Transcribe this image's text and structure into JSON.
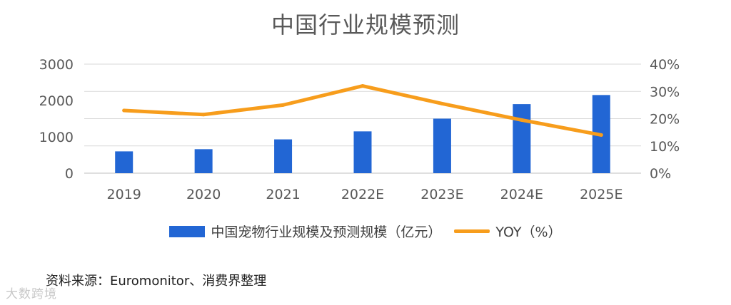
{
  "chart_data": {
    "type": "bar",
    "title": "中国行业规模预测",
    "categories": [
      "2019",
      "2020",
      "2021",
      "2022E",
      "2023E",
      "2024E",
      "2025E"
    ],
    "series": [
      {
        "name": "中国宠物行业规模及预测规模（亿元）",
        "type": "bar",
        "axis": "left",
        "color": "#2266d4",
        "values": [
          600,
          660,
          930,
          1150,
          1500,
          1900,
          2150
        ]
      },
      {
        "name": "YOY（%）",
        "type": "line",
        "axis": "right",
        "color": "#f79d1c",
        "values": [
          23,
          21.5,
          25,
          32,
          25.5,
          19.5,
          14
        ]
      }
    ],
    "y_left": {
      "ylim": [
        0,
        3000
      ],
      "ticks": [
        "0",
        "1000",
        "2000",
        "3000"
      ],
      "tick_values": [
        0,
        1000,
        2000,
        3000
      ]
    },
    "y_right": {
      "ylim": [
        0,
        40
      ],
      "ticks": [
        "0%",
        "10%",
        "20%",
        "30%",
        "40%"
      ],
      "tick_values": [
        0,
        10,
        20,
        30,
        40
      ]
    },
    "grid": true,
    "legend_position": "bottom"
  },
  "source_text": "资料来源：Euromonitor、消费界整理",
  "watermark_text": "大数跨境"
}
